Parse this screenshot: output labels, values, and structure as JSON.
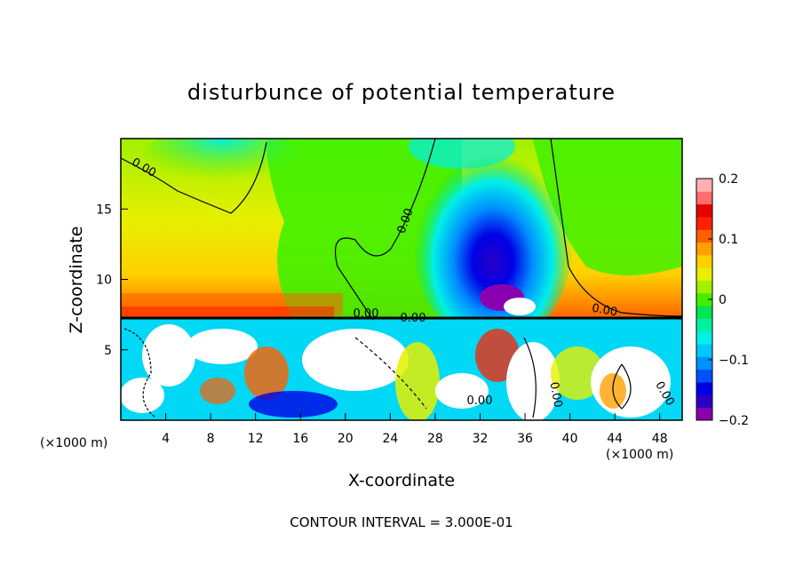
{
  "chart_data": {
    "type": "heatmap",
    "title": "disturbunce of potential temperature",
    "xlabel": "X-coordinate",
    "ylabel": "Z-coordinate",
    "x_unit": "(×1000 m)",
    "y_unit": "(×1000 m)",
    "xlim": [
      0,
      50
    ],
    "ylim": [
      0,
      20
    ],
    "x_ticks": [
      4,
      8,
      12,
      16,
      20,
      24,
      28,
      32,
      36,
      40,
      44,
      48
    ],
    "y_ticks": [
      5,
      10,
      15
    ],
    "contour_interval_text": "CONTOUR INTERVAL = 3.000E-01",
    "contour_labels": [
      "0.00",
      "0.00",
      "0.00",
      "0.00",
      "0.00",
      "0.00",
      "0.00",
      "0.00"
    ],
    "colorbar": {
      "range": [
        -0.2,
        0.2
      ],
      "ticks": [
        {
          "value": 0.2,
          "label": "0.2"
        },
        {
          "value": 0.1,
          "label": "0.1"
        },
        {
          "value": 0,
          "label": "0"
        },
        {
          "value": -0.1,
          "label": "−0.1"
        },
        {
          "value": -0.2,
          "label": "−0.2"
        }
      ],
      "colors": [
        "#8a00b0",
        "#2a00c8",
        "#0000e6",
        "#0050ff",
        "#0090ff",
        "#00c8ff",
        "#00f0e8",
        "#00f0a0",
        "#00e650",
        "#40f000",
        "#a0f000",
        "#e6f000",
        "#ffd000",
        "#ffa000",
        "#ff6000",
        "#ff2000",
        "#e60000",
        "#ff6e6e",
        "#ffb0b0"
      ]
    },
    "field_features": [
      {
        "kind": "min",
        "x": 34.5,
        "z": 11,
        "value": -0.2
      },
      {
        "kind": "max",
        "x": 14,
        "z": 8,
        "value": 0.12
      }
    ]
  }
}
